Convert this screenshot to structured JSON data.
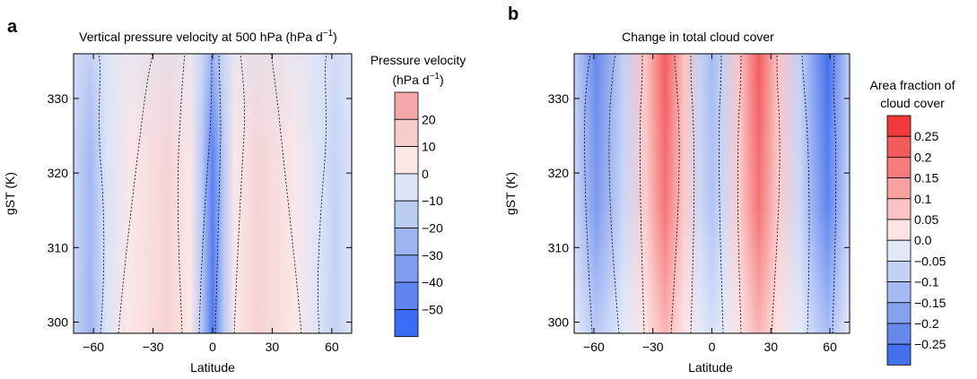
{
  "panel_letters": [
    "a",
    "b"
  ],
  "chart_data": [
    {
      "type": "heatmap",
      "panel": "a",
      "title": "Vertical pressure velocity at 500 hPa (hPa d",
      "title_sup": "−1",
      "title_end": ")",
      "xlabel": "Latitude",
      "ylabel": "gST (K)",
      "xlim": [
        -70,
        70
      ],
      "ylim": [
        298.5,
        336
      ],
      "xticks": [
        -60,
        -30,
        0,
        30,
        60
      ],
      "xtick_labels": [
        "−60",
        "−30",
        "0",
        "30",
        "60"
      ],
      "yticks": [
        300,
        310,
        320,
        330
      ],
      "ytick_labels": [
        "300",
        "310",
        "320",
        "330"
      ],
      "colorbar": {
        "title_lines": [
          "Pressure velocity",
          "(hPa d"
        ],
        "title_sup": "−1",
        "title_end": ")",
        "levels": [
          30,
          20,
          10,
          0,
          -10,
          -20,
          -30,
          -40,
          -50,
          -60
        ],
        "colors": [
          "#f4a8aa",
          "#f8cccd",
          "#fce7e7",
          "#dce4f7",
          "#bccdf4",
          "#9eb5f3",
          "#7f9cf0",
          "#5f85f1",
          "#3b6cf6"
        ],
        "tick_labels": [
          "20",
          "10",
          "0",
          "−10",
          "−20",
          "−30",
          "−40",
          "−50"
        ]
      }
    },
    {
      "type": "heatmap",
      "panel": "b",
      "title": "Change in total cloud cover",
      "xlabel": "Latitude",
      "ylabel": "gST (K)",
      "xlim": [
        -70,
        70
      ],
      "ylim": [
        298.5,
        336
      ],
      "xticks": [
        -60,
        -30,
        0,
        30,
        60
      ],
      "xtick_labels": [
        "−60",
        "−30",
        "0",
        "30",
        "60"
      ],
      "yticks": [
        300,
        310,
        320,
        330
      ],
      "ytick_labels": [
        "300",
        "310",
        "320",
        "330"
      ],
      "colorbar": {
        "title_lines": [
          "Area fraction of",
          "cloud cover"
        ],
        "levels": [
          0.3,
          0.25,
          0.2,
          0.15,
          0.1,
          0.05,
          0.0,
          -0.05,
          -0.1,
          -0.15,
          -0.2,
          -0.25,
          -0.3
        ],
        "colors": [
          "#f03a3a",
          "#f35c5d",
          "#f57d7e",
          "#f8a1a1",
          "#fbc3c3",
          "#fde3e3",
          "#e2e8f8",
          "#c3d1f5",
          "#a5baf2",
          "#86a2ef",
          "#6789ec",
          "#4470ee"
        ],
        "tick_labels": [
          "0.25",
          "0.2",
          "0.15",
          "0.1",
          "0.05",
          "0.0",
          "−0.05",
          "−0.1",
          "−0.15",
          "−0.2",
          "−0.25"
        ]
      }
    }
  ]
}
